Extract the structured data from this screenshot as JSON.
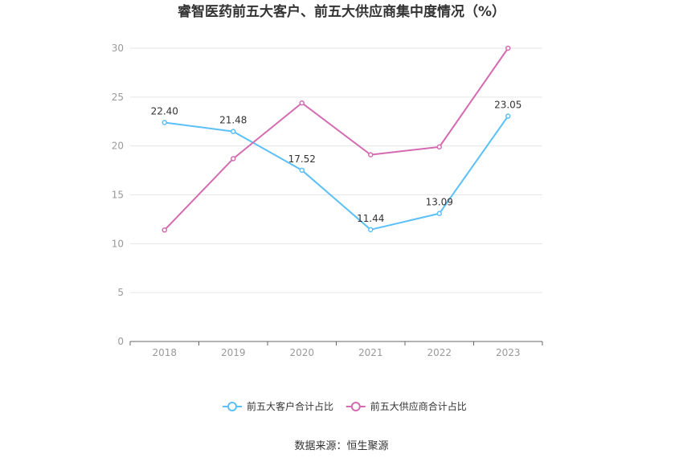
{
  "chart_data": {
    "type": "line",
    "title": "睿智医药前五大客户、前五大供应商集中度情况（%）",
    "categories": [
      "2018",
      "2019",
      "2020",
      "2021",
      "2022",
      "2023"
    ],
    "ylim": [
      0,
      30
    ],
    "yticks": [
      0,
      5,
      10,
      15,
      20,
      25,
      30
    ],
    "grid": true,
    "legend_position": "bottom",
    "series": [
      {
        "name": "前五大客户合计占比",
        "color": "#5bc0f8",
        "values": [
          22.4,
          21.48,
          17.52,
          11.44,
          13.09,
          23.05
        ],
        "labels": [
          "22.40",
          "21.48",
          "17.52",
          "11.44",
          "13.09",
          "23.05"
        ]
      },
      {
        "name": "前五大供应商合计占比",
        "color": "#d46bb0",
        "values": [
          11.4,
          18.7,
          24.4,
          19.1,
          19.9,
          30.0
        ],
        "labels": []
      }
    ]
  },
  "source": "数据来源：恒生聚源"
}
